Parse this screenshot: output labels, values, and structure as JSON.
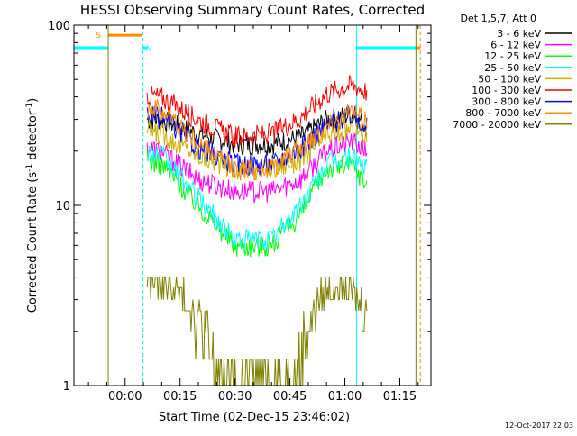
{
  "chart_data": {
    "type": "line",
    "title": "HESSI Observing Summary Count Rates, Corrected",
    "xlabel": "Start Time (02-Dec-15 23:46:02)",
    "ylabel_main": "Corrected Count Rate (s",
    "ylabel_sup1": "-1",
    "ylabel_mid": " detector",
    "ylabel_sup2": "-1",
    "ylabel_end": ")",
    "yscale": "log",
    "ylim": [
      1,
      100
    ],
    "y_ticks": [
      {
        "value": 1,
        "label": "1"
      },
      {
        "value": 10,
        "label": "10"
      },
      {
        "value": 100,
        "label": "100"
      }
    ],
    "x_unit": "minutes after 2015-12-03 00:00 UT",
    "xlim": [
      -13.97,
      83.5
    ],
    "x_ticks": [
      {
        "value": 0,
        "label": "00:00"
      },
      {
        "value": 15,
        "label": "00:15"
      },
      {
        "value": 30,
        "label": "00:30"
      },
      {
        "value": 45,
        "label": "00:45"
      },
      {
        "value": 60,
        "label": "01:00"
      },
      {
        "value": 75,
        "label": "01:15"
      }
    ],
    "legend_title": "Det 1,5,7, Att 0",
    "legend_position": "outside-right",
    "series": [
      {
        "name": "3 - 6 keV",
        "color": "#000000",
        "x": [
          6,
          10,
          20,
          30,
          40,
          48,
          55,
          62,
          66
        ],
        "y": [
          30,
          30,
          25,
          22,
          22,
          24,
          30,
          32,
          28
        ]
      },
      {
        "name": "6 - 12 keV",
        "color": "#ff00ff",
        "x": [
          6,
          10,
          20,
          30,
          40,
          48,
          55,
          62,
          66
        ],
        "y": [
          21,
          20,
          14,
          12,
          12,
          14,
          20,
          23,
          20
        ]
      },
      {
        "name": "12 - 25 keV",
        "color": "#00ff00",
        "x": [
          6,
          10,
          20,
          30,
          40,
          48,
          55,
          62,
          66
        ],
        "y": [
          18,
          17,
          10,
          6,
          6,
          9,
          16,
          17,
          13
        ]
      },
      {
        "name": "25 - 50 keV",
        "color": "#00ffff",
        "x": [
          6,
          10,
          20,
          30,
          40,
          48,
          55,
          62,
          66
        ],
        "y": [
          20,
          19,
          11,
          6.5,
          6.5,
          10,
          17,
          19,
          16
        ]
      },
      {
        "name": "50 - 100 keV",
        "color": "#ccb000",
        "x": [
          6,
          10,
          20,
          30,
          40,
          48,
          55,
          62,
          66
        ],
        "y": [
          26,
          25,
          19,
          16,
          16,
          18,
          24,
          27,
          24
        ]
      },
      {
        "name": "100 - 300 keV",
        "color": "#ff0000",
        "x": [
          6,
          10,
          20,
          30,
          40,
          48,
          55,
          62,
          66
        ],
        "y": [
          41,
          40,
          30,
          24,
          25,
          31,
          42,
          47,
          43
        ]
      },
      {
        "name": "300 - 800 keV",
        "color": "#0000ff",
        "x": [
          6,
          10,
          20,
          30,
          40,
          48,
          55,
          62,
          66
        ],
        "y": [
          32,
          31,
          21,
          17,
          17,
          21,
          28,
          32,
          28
        ]
      },
      {
        "name": "800 - 7000 keV",
        "color": "#ff8c00",
        "x": [
          6,
          10,
          20,
          30,
          40,
          48,
          55,
          62,
          66
        ],
        "y": [
          35,
          34,
          22,
          16,
          16,
          21,
          28,
          33,
          30
        ]
      },
      {
        "name": "7000 - 20000 keV",
        "color": "#808000",
        "x": [
          6,
          10,
          14,
          18,
          22,
          26,
          46,
          50,
          54,
          58,
          62,
          66
        ],
        "y": [
          3.5,
          3.5,
          3,
          2.2,
          1.5,
          1,
          1,
          1.7,
          2.8,
          3.5,
          3,
          2
        ]
      }
    ],
    "flag_bars": [
      {
        "label": "S",
        "color": "#ff8c00",
        "x_start": -4.6,
        "x_end": 4.7
      },
      {
        "label": "N",
        "color": "#00ffff",
        "x_start": 4.7,
        "x_end": 6
      },
      {
        "label": "",
        "color": "#00ffff",
        "x_start": -13.97,
        "x_end": -4.6
      },
      {
        "label": "",
        "color": "#00ffff",
        "x_start": 63,
        "x_end": 79.4
      },
      {
        "label": "",
        "color": "#ff8c00",
        "x_start": 79.4,
        "x_end": 80.6
      }
    ],
    "vertical_lines": [
      {
        "color": "#808000",
        "style": "solid",
        "x": -4.6
      },
      {
        "color": "#ff8c00",
        "style": "dashed",
        "x": 4.7
      },
      {
        "color": "#00ffff",
        "style": "dashed",
        "x": 4.9
      },
      {
        "color": "#00ffff",
        "style": "solid",
        "x": 63.2
      },
      {
        "color": "#808000",
        "style": "solid",
        "x": 79.4
      },
      {
        "color": "#ff8c00",
        "style": "dashed",
        "x": 80.6
      }
    ]
  },
  "footer": {
    "timestamp": "12-Oct-2017 22:03"
  },
  "colors": {
    "background": "#ffffff",
    "axes": "#000000"
  }
}
